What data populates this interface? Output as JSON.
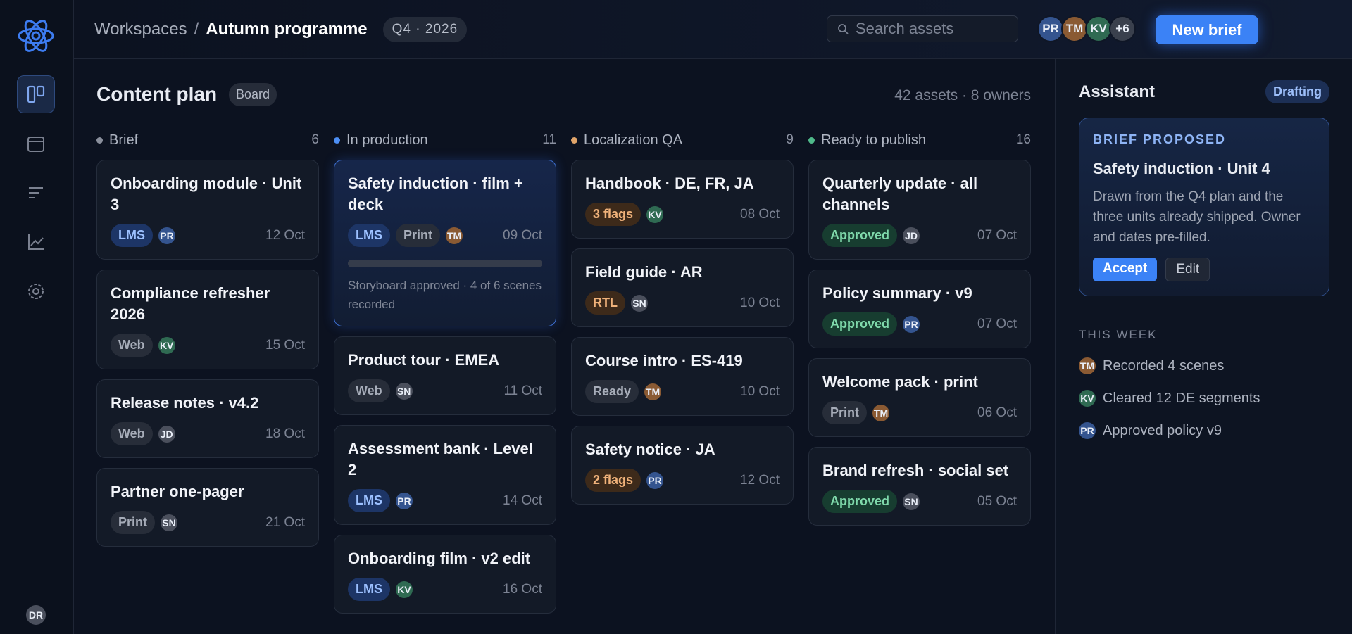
{
  "header": {
    "breadcrumb": [
      "Workspaces",
      "Autumn programme"
    ],
    "separator": "/",
    "period": "Q4 · 2026",
    "search_placeholder": "Search assets",
    "avatars": [
      "PR",
      "TM",
      "KV"
    ],
    "more": "+6",
    "primary_button": "New brief"
  },
  "sidebar": {
    "user": "DR"
  },
  "avatar_colors": {
    "PR": "#34548f",
    "TM": "#8a5a33",
    "KV": "#2f6a52",
    "SN": "#4a4f5c",
    "JD": "#4a4f5c",
    "DR": "#4a4f5c"
  },
  "board": {
    "title": "Content plan",
    "view": "Board",
    "summary": "42 assets · 8 owners",
    "columns": [
      {
        "name": "Brief",
        "count": "6",
        "color": "#8a8f9c",
        "cards": [
          {
            "title": "Onboarding module · Unit 3",
            "tags": [
              {
                "label": "LMS",
                "tone": "blue"
              }
            ],
            "owner": "PR",
            "date": "12 Oct"
          },
          {
            "title": "Compliance refresher 2026",
            "tags": [
              {
                "label": "Web",
                "tone": "gray"
              }
            ],
            "owner": "KV",
            "date": "15 Oct"
          },
          {
            "title": "Release notes · v4.2",
            "tags": [
              {
                "label": "Web",
                "tone": "gray"
              }
            ],
            "owner": "JD",
            "date": "18 Oct"
          },
          {
            "title": "Partner one-pager",
            "tags": [
              {
                "label": "Print",
                "tone": "gray"
              }
            ],
            "owner": "SN",
            "date": "21 Oct"
          }
        ]
      },
      {
        "name": "In production",
        "count": "11",
        "color": "#4d8ff5",
        "cards": [
          {
            "title": "Safety induction · film + deck",
            "tags": [
              {
                "label": "LMS",
                "tone": "blue"
              },
              {
                "label": "Print",
                "tone": "gray"
              }
            ],
            "owner": "TM",
            "date": "09 Oct",
            "selected": true,
            "note": "Storyboard approved · 4 of 6 scenes recorded"
          },
          {
            "title": "Product tour · EMEA",
            "tags": [
              {
                "label": "Web",
                "tone": "gray"
              }
            ],
            "owner": "SN",
            "date": "11 Oct"
          },
          {
            "title": "Assessment bank · Level 2",
            "tags": [
              {
                "label": "LMS",
                "tone": "blue"
              }
            ],
            "owner": "PR",
            "date": "14 Oct"
          },
          {
            "title": "Onboarding film · v2 edit",
            "tags": [
              {
                "label": "LMS",
                "tone": "blue"
              }
            ],
            "owner": "KV",
            "date": "16 Oct"
          }
        ]
      },
      {
        "name": "Localization QA",
        "count": "9",
        "color": "#e0a46a",
        "cards": [
          {
            "title": "Handbook · DE, FR, JA",
            "tags": [
              {
                "label": "3 flags",
                "tone": "amber"
              }
            ],
            "owner": "KV",
            "date": "08 Oct"
          },
          {
            "title": "Field guide · AR",
            "tags": [
              {
                "label": "RTL",
                "tone": "amber"
              }
            ],
            "owner": "SN",
            "date": "10 Oct"
          },
          {
            "title": "Course intro · ES-419",
            "tags": [
              {
                "label": "Ready",
                "tone": "gray"
              }
            ],
            "owner": "TM",
            "date": "10 Oct"
          },
          {
            "title": "Safety notice · JA",
            "tags": [
              {
                "label": "2 flags",
                "tone": "amber"
              }
            ],
            "owner": "PR",
            "date": "12 Oct"
          }
        ]
      },
      {
        "name": "Ready to publish",
        "count": "16",
        "color": "#4fb98a",
        "cards": [
          {
            "title": "Quarterly update · all channels",
            "tags": [
              {
                "label": "Approved",
                "tone": "green"
              }
            ],
            "owner": "JD",
            "date": "07 Oct"
          },
          {
            "title": "Policy summary · v9",
            "tags": [
              {
                "label": "Approved",
                "tone": "green"
              }
            ],
            "owner": "PR",
            "date": "07 Oct"
          },
          {
            "title": "Welcome pack · print",
            "tags": [
              {
                "label": "Print",
                "tone": "gray"
              }
            ],
            "owner": "TM",
            "date": "06 Oct"
          },
          {
            "title": "Brand refresh · social set",
            "tags": [
              {
                "label": "Approved",
                "tone": "green"
              }
            ],
            "owner": "SN",
            "date": "05 Oct"
          }
        ]
      }
    ]
  },
  "assistant": {
    "title": "Assistant",
    "status": "Drafting",
    "proposal": {
      "eyebrow": "BRIEF PROPOSED",
      "title": "Safety induction · Unit 4",
      "body": "Drawn from the Q4 plan and the three units already shipped. Owner and dates pre-filled.",
      "accept": "Accept",
      "edit": "Edit"
    },
    "section": "THIS WEEK",
    "activity": [
      {
        "owner": "TM",
        "text": "Recorded 4 scenes"
      },
      {
        "owner": "KV",
        "text": "Cleared 12 DE segments"
      },
      {
        "owner": "PR",
        "text": "Approved policy v9"
      }
    ]
  }
}
